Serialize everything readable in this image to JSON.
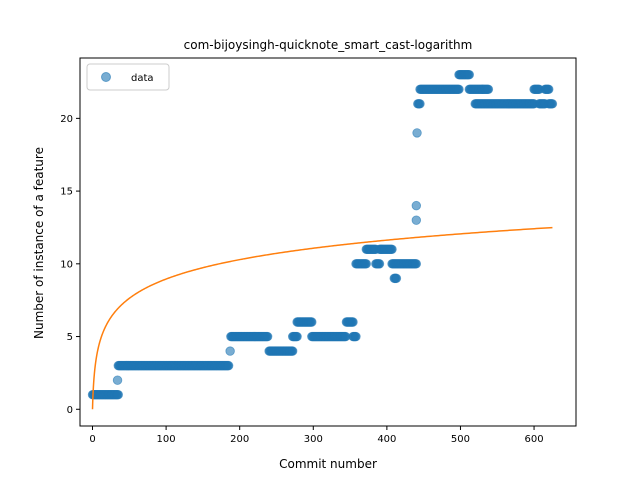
{
  "chart_data": {
    "type": "scatter",
    "title": "com-bijoysingh-quicknote_smart_cast-logarithm",
    "xlabel": "Commit number",
    "ylabel": "Number of instance of a feature",
    "xlim": [
      -17,
      657
    ],
    "ylim": [
      -1.15,
      24.15
    ],
    "x_ticks": [
      0,
      100,
      200,
      300,
      400,
      500,
      600
    ],
    "y_ticks": [
      0,
      5,
      10,
      15,
      20
    ],
    "legend": {
      "position": "top-left",
      "entries": [
        "data"
      ]
    },
    "grid": false,
    "colors": {
      "points": "#1f77b4",
      "fit": "#ff7f0e"
    },
    "series": [
      {
        "name": "data",
        "kind": "points",
        "runs": [
          [
            0,
            35,
            1
          ],
          [
            34,
            34,
            2
          ],
          [
            35,
            185,
            3
          ],
          [
            187,
            187,
            4
          ],
          [
            188,
            238,
            5
          ],
          [
            240,
            272,
            4
          ],
          [
            272,
            278,
            5
          ],
          [
            278,
            298,
            6
          ],
          [
            298,
            344,
            5
          ],
          [
            345,
            354,
            6
          ],
          [
            354,
            358,
            5
          ],
          [
            358,
            372,
            10
          ],
          [
            372,
            385,
            11
          ],
          [
            385,
            390,
            10
          ],
          [
            390,
            407,
            11
          ],
          [
            407,
            440,
            10
          ],
          [
            410,
            413,
            9
          ],
          [
            440,
            440,
            13
          ],
          [
            440,
            440,
            14
          ],
          [
            441,
            441,
            19
          ],
          [
            442,
            445,
            21
          ],
          [
            445,
            498,
            22
          ],
          [
            498,
            512,
            23
          ],
          [
            512,
            530,
            22
          ],
          [
            520,
            600,
            21
          ],
          [
            530,
            538,
            22
          ],
          [
            600,
            607,
            22
          ],
          [
            607,
            615,
            21
          ],
          [
            615,
            620,
            22
          ],
          [
            620,
            625,
            21
          ]
        ]
      },
      {
        "name": "",
        "kind": "line",
        "model": "a*ln(x+1)",
        "a": 1.94,
        "x_range": [
          0,
          625
        ]
      }
    ]
  }
}
